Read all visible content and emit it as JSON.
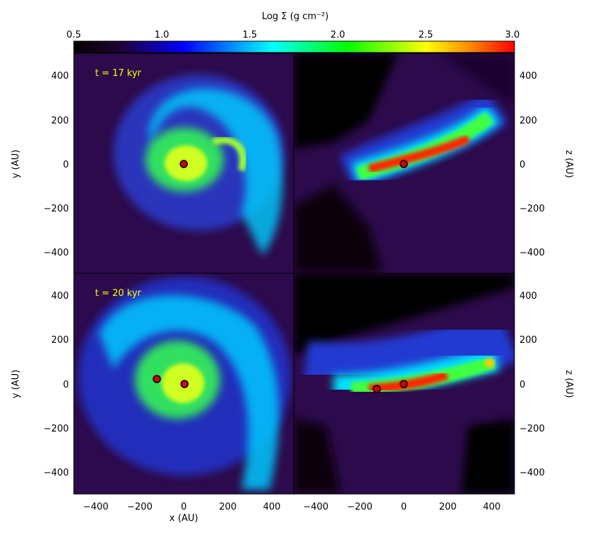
{
  "colorbar": {
    "title": "Log Σ (g cm⁻²)",
    "ticks": [
      "0.5",
      "1.0",
      "1.5",
      "2.0",
      "2.5",
      "3.0"
    ],
    "stops": [
      "#000000",
      "#1a0040",
      "#0000ff",
      "#00ffff",
      "#00ff00",
      "#ffff00",
      "#ff6600",
      "#ff0000"
    ]
  },
  "panels": {
    "top_left": {
      "label": "t = 17 kyr"
    },
    "bottom_left": {
      "label": "t = 20 kyr"
    }
  },
  "axes": {
    "xlabel": "x (AU)",
    "ylabel_left": "y (AU)",
    "ylabel_right": "z (AU)",
    "x_ticks": [
      "−400",
      "−200",
      "0",
      "200",
      "400"
    ],
    "y_ticks": [
      "400",
      "200",
      "0",
      "−200",
      "−400"
    ]
  },
  "colors": {
    "background": "#2b0a4a",
    "label": "#ffff00",
    "sink": "#cc0000"
  }
}
